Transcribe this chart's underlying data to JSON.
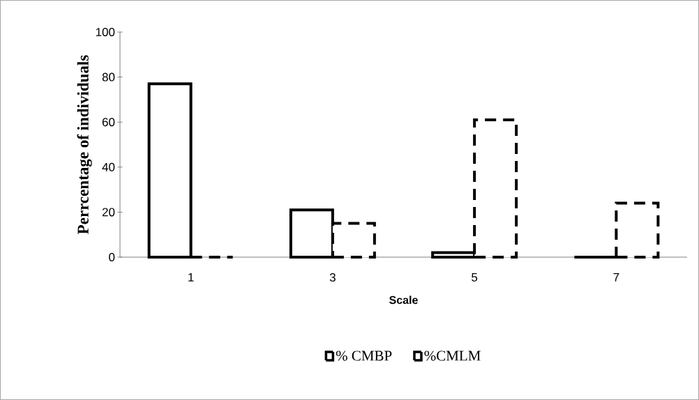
{
  "chart_data": {
    "type": "bar",
    "categories": [
      "1",
      "3",
      "5",
      "7"
    ],
    "xlabel": "Scale",
    "ylabel": "Perrcentage of individuals",
    "ylim": [
      0,
      100
    ],
    "yticks": [
      0,
      20,
      40,
      60,
      80,
      100
    ],
    "legend": "bottom",
    "grid": false,
    "series": [
      {
        "name": "% CMBP",
        "color": "#000000",
        "line_style": "solid",
        "values": [
          77,
          21,
          2,
          0
        ]
      },
      {
        "name": "%CMLM",
        "color": "#000000",
        "line_style": "dashed",
        "values": [
          0,
          15,
          61,
          24
        ]
      }
    ]
  }
}
